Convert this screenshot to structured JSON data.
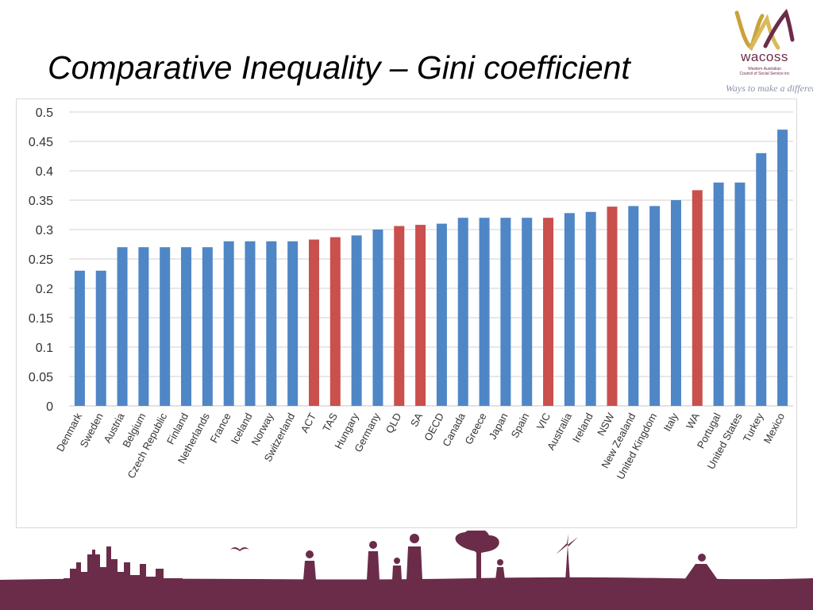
{
  "slide": {
    "title": "Comparative Inequality – Gini coefficient"
  },
  "logo": {
    "name": "wacoss",
    "subtitle_line1": "Western Australian",
    "subtitle_line2": "Council of Social Service inc",
    "tagline": "Ways to make a difference"
  },
  "colors": {
    "country_bar": "#4f86c6",
    "state_bar": "#c9504d",
    "grid": "#d9d9d9",
    "footer_band": "#6b2c4a",
    "silhouette": "#6b2c4a"
  },
  "chart_data": {
    "type": "bar",
    "title": "",
    "xlabel": "",
    "ylabel": "",
    "ylim": [
      0,
      0.5
    ],
    "yticks": [
      "0",
      "0.05",
      "0.1",
      "0.15",
      "0.2",
      "0.25",
      "0.3",
      "0.35",
      "0.4",
      "0.45",
      "0.5"
    ],
    "grid": true,
    "legend": "none",
    "categories": [
      "Denmark",
      "Sweden",
      "Austria",
      "Belgium",
      "Czech Republic",
      "Finland",
      "Netherlands",
      "France",
      "Iceland",
      "Norway",
      "Switzerland",
      "ACT",
      "TAS",
      "Hungary",
      "Germany",
      "QLD",
      "SA",
      "OECD",
      "Canada",
      "Greece",
      "Japan",
      "Spain",
      "VIC",
      "Australia",
      "Ireland",
      "NSW",
      "New Zealand",
      "United Kingdom",
      "Italy",
      "WA",
      "Portugal",
      "United States",
      "Turkey",
      "Mexico"
    ],
    "values": [
      0.23,
      0.23,
      0.27,
      0.27,
      0.27,
      0.27,
      0.27,
      0.28,
      0.28,
      0.28,
      0.28,
      0.283,
      0.287,
      0.29,
      0.3,
      0.306,
      0.308,
      0.31,
      0.32,
      0.32,
      0.32,
      0.32,
      0.32,
      0.328,
      0.33,
      0.339,
      0.34,
      0.34,
      0.35,
      0.367,
      0.38,
      0.38,
      0.43,
      0.47
    ],
    "bar_colors": [
      "#4f86c6",
      "#4f86c6",
      "#4f86c6",
      "#4f86c6",
      "#4f86c6",
      "#4f86c6",
      "#4f86c6",
      "#4f86c6",
      "#4f86c6",
      "#4f86c6",
      "#4f86c6",
      "#c9504d",
      "#c9504d",
      "#4f86c6",
      "#4f86c6",
      "#c9504d",
      "#c9504d",
      "#4f86c6",
      "#4f86c6",
      "#4f86c6",
      "#4f86c6",
      "#4f86c6",
      "#c9504d",
      "#4f86c6",
      "#4f86c6",
      "#c9504d",
      "#4f86c6",
      "#4f86c6",
      "#4f86c6",
      "#c9504d",
      "#4f86c6",
      "#4f86c6",
      "#4f86c6",
      "#4f86c6"
    ]
  }
}
